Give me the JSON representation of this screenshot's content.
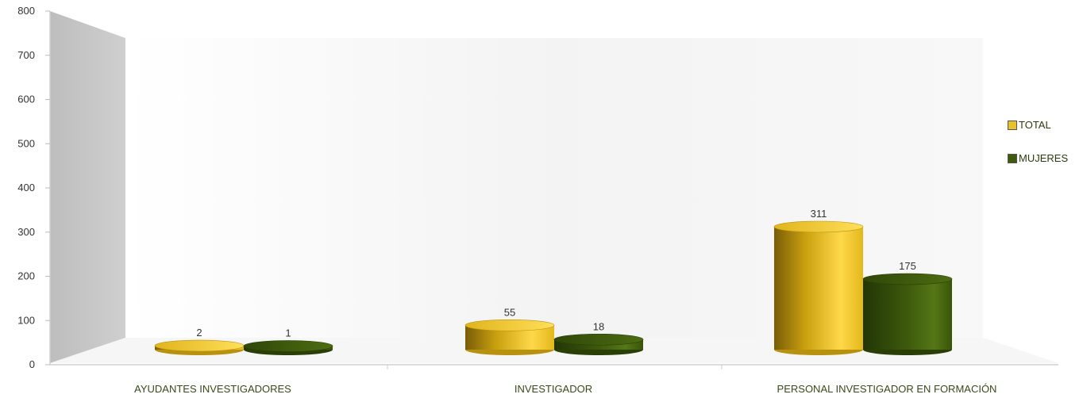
{
  "chart_data": {
    "type": "bar",
    "style": "3d-cylinder",
    "categories": [
      "AYUDANTES INVESTIGADORES",
      "INVESTIGADOR",
      "PERSONAL INVESTIGADOR EN FORMACIÓN"
    ],
    "series": [
      {
        "name": "TOTAL",
        "values": [
          2,
          55,
          311
        ],
        "color": "#e8c22a"
      },
      {
        "name": "MUJERES",
        "values": [
          1,
          18,
          175
        ],
        "color": "#3e5a0a"
      }
    ],
    "ylim": [
      0,
      800
    ],
    "yticks": [
      0,
      100,
      200,
      300,
      400,
      500,
      600,
      700,
      800
    ],
    "legend_position": "right",
    "grid": false
  }
}
